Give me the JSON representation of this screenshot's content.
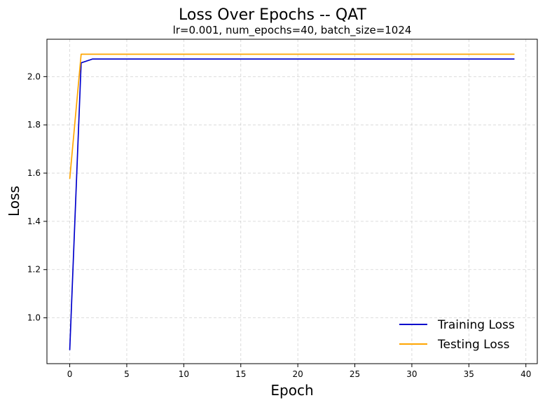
{
  "chart_data": {
    "type": "line",
    "title": "Loss Over Epochs -- QAT",
    "subtitle": "lr=0.001, num_epochs=40, batch_size=1024",
    "xlabel": "Epoch",
    "ylabel": "Loss",
    "xlim": [
      -2,
      41
    ],
    "ylim": [
      0.81,
      2.155
    ],
    "xticks": [
      0,
      5,
      10,
      15,
      20,
      25,
      30,
      35,
      40
    ],
    "yticks": [
      1.0,
      1.2,
      1.4,
      1.6,
      1.8,
      2.0
    ],
    "xtick_labels": [
      "0",
      "5",
      "10",
      "15",
      "20",
      "25",
      "30",
      "35",
      "40"
    ],
    "ytick_labels": [
      "1.0",
      "1.2",
      "1.4",
      "1.6",
      "1.8",
      "2.0"
    ],
    "grid": true,
    "legend_position": "lower-right",
    "x": [
      0,
      1,
      2,
      3,
      4,
      5,
      6,
      7,
      8,
      9,
      10,
      11,
      12,
      13,
      14,
      15,
      16,
      17,
      18,
      19,
      20,
      21,
      22,
      23,
      24,
      25,
      26,
      27,
      28,
      29,
      30,
      31,
      32,
      33,
      34,
      35,
      36,
      37,
      38,
      39
    ],
    "series": [
      {
        "name": "Training Loss",
        "color": "#0000cc",
        "values": [
          0.866,
          2.057,
          2.073,
          2.073,
          2.073,
          2.073,
          2.073,
          2.073,
          2.073,
          2.073,
          2.073,
          2.073,
          2.073,
          2.073,
          2.073,
          2.073,
          2.073,
          2.073,
          2.073,
          2.073,
          2.073,
          2.073,
          2.073,
          2.073,
          2.073,
          2.073,
          2.073,
          2.073,
          2.073,
          2.073,
          2.073,
          2.073,
          2.073,
          2.073,
          2.073,
          2.073,
          2.073,
          2.073,
          2.073,
          2.073
        ]
      },
      {
        "name": "Testing Loss",
        "color": "#ffa500",
        "values": [
          1.576,
          2.093,
          2.093,
          2.093,
          2.093,
          2.093,
          2.093,
          2.093,
          2.093,
          2.093,
          2.093,
          2.093,
          2.093,
          2.093,
          2.093,
          2.093,
          2.093,
          2.093,
          2.093,
          2.093,
          2.093,
          2.093,
          2.093,
          2.093,
          2.093,
          2.093,
          2.093,
          2.093,
          2.093,
          2.093,
          2.093,
          2.093,
          2.093,
          2.093,
          2.093,
          2.093,
          2.093,
          2.093,
          2.093,
          2.093
        ]
      }
    ]
  }
}
